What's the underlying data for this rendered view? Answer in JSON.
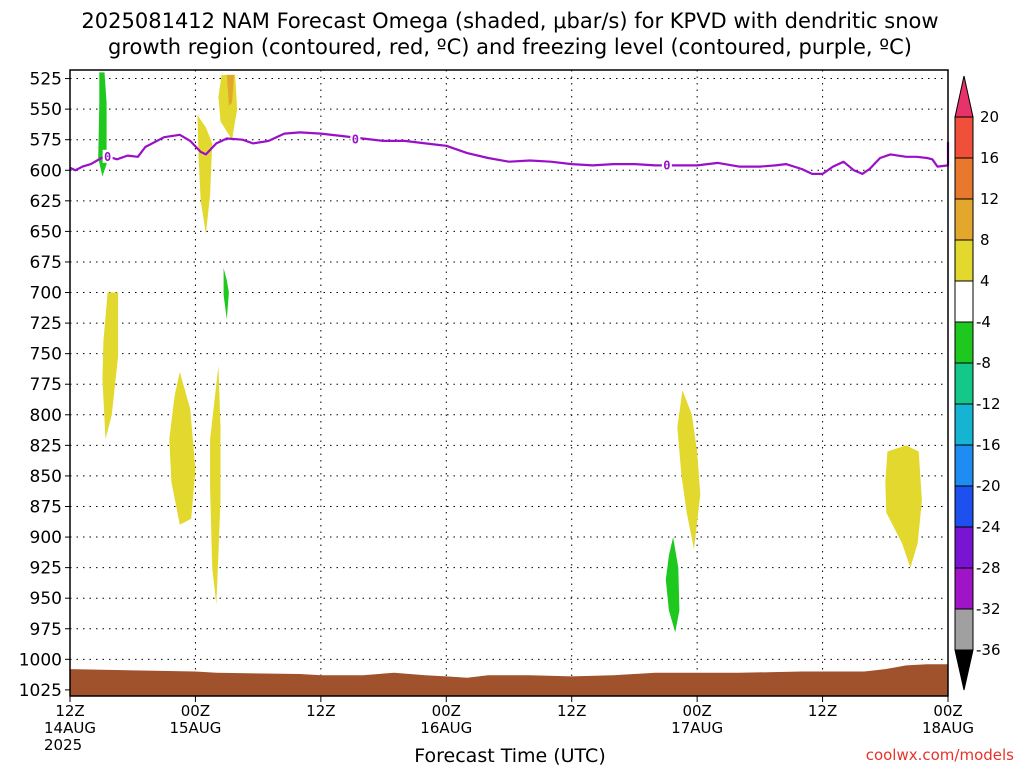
{
  "title_line1": "2025081412 NAM Forecast Omega (shaded, μbar/s) for KPVD with dendritic snow",
  "title_line2": "growth region (contoured, red, ºC) and freezing level (contoured, purple, ºC)",
  "credit": "coolwx.com/models",
  "colors": {
    "freezing_line": "#9a10c8",
    "ground": "#a0522d",
    "shade_pos_4_8": "#e3d82e",
    "shade_pos_8_12": "#e3a82b",
    "shade_neg_4_8": "#1ec81e"
  },
  "chart_data": {
    "type": "time-height",
    "title": "2025081412 NAM Forecast Omega (shaded, μbar/s) for KPVD with dendritic snow growth region (contoured, red, ºC) and freezing level (contoured, purple, ºC)",
    "xlabel": "Forecast Time (UTC)",
    "ylabel": "",
    "x_ticks": [
      {
        "t": 0,
        "label1": "12Z",
        "label2": "14AUG",
        "label3": "2025"
      },
      {
        "t": 12,
        "label1": "00Z",
        "label2": "15AUG",
        "label3": ""
      },
      {
        "t": 24,
        "label1": "12Z",
        "label2": "",
        "label3": ""
      },
      {
        "t": 36,
        "label1": "00Z",
        "label2": "16AUG",
        "label3": ""
      },
      {
        "t": 48,
        "label1": "12Z",
        "label2": "",
        "label3": ""
      },
      {
        "t": 60,
        "label1": "00Z",
        "label2": "17AUG",
        "label3": ""
      },
      {
        "t": 72,
        "label1": "12Z",
        "label2": "",
        "label3": ""
      },
      {
        "t": 84,
        "label1": "00Z",
        "label2": "18AUG",
        "label3": ""
      }
    ],
    "xlim_hours": [
      0,
      84
    ],
    "y_ticks": [
      525,
      550,
      575,
      600,
      625,
      650,
      675,
      700,
      725,
      750,
      775,
      800,
      825,
      850,
      875,
      900,
      925,
      950,
      975,
      1000,
      1025
    ],
    "ylim_hPa": [
      518,
      1030
    ],
    "grid": true,
    "colorbar": {
      "labels": [
        "20",
        "16",
        "12",
        "8",
        "4",
        "-4",
        "-8",
        "-12",
        "-16",
        "-20",
        "-24",
        "-28",
        "-32",
        "-36"
      ],
      "colors": [
        "#e8326a",
        "#f0503a",
        "#e8782d",
        "#e3a82b",
        "#e3d82e",
        "#ffffff",
        "#1ec81e",
        "#14c889",
        "#14b4d2",
        "#1e8cf0",
        "#1e50f0",
        "#7814d2",
        "#a014c8",
        "#a0a0a0",
        "#000000"
      ]
    },
    "freezing_level_label": "0",
    "freezing_level": [
      [
        0,
        598
      ],
      [
        0.5,
        600
      ],
      [
        1.2,
        597
      ],
      [
        2,
        595
      ],
      [
        3,
        590
      ],
      [
        3.7,
        589
      ],
      [
        4.5,
        591
      ],
      [
        5.5,
        588
      ],
      [
        6.5,
        589
      ],
      [
        7.2,
        581
      ],
      [
        9,
        573
      ],
      [
        10.5,
        571
      ],
      [
        11.5,
        576
      ],
      [
        12.5,
        585
      ],
      [
        13,
        587
      ],
      [
        14,
        578
      ],
      [
        15,
        574
      ],
      [
        16.5,
        575
      ],
      [
        17.5,
        578
      ],
      [
        19,
        576
      ],
      [
        20.5,
        570
      ],
      [
        22,
        569
      ],
      [
        24,
        570
      ],
      [
        26,
        572
      ],
      [
        28,
        574
      ],
      [
        30,
        576
      ],
      [
        32,
        576
      ],
      [
        34,
        578
      ],
      [
        35,
        579
      ],
      [
        36,
        580
      ],
      [
        38,
        586
      ],
      [
        40,
        590
      ],
      [
        42,
        593
      ],
      [
        44,
        592
      ],
      [
        46,
        593
      ],
      [
        48,
        595
      ],
      [
        50,
        596
      ],
      [
        52,
        595
      ],
      [
        54,
        595
      ],
      [
        56,
        596
      ],
      [
        58,
        596
      ],
      [
        60,
        596
      ],
      [
        62,
        594
      ],
      [
        64,
        597
      ],
      [
        66,
        597
      ],
      [
        67.5,
        596
      ],
      [
        68.5,
        595
      ],
      [
        70,
        599
      ],
      [
        71,
        603
      ],
      [
        72,
        603
      ],
      [
        73,
        597
      ],
      [
        74,
        593
      ],
      [
        75,
        600
      ],
      [
        75.8,
        603
      ],
      [
        76.5,
        599
      ],
      [
        77.5,
        590
      ],
      [
        78.5,
        587
      ],
      [
        80,
        589
      ],
      [
        81,
        589
      ],
      [
        82,
        590
      ],
      [
        82.5,
        591
      ],
      [
        83,
        597
      ],
      [
        84,
        596
      ],
      [
        84.5,
        592
      ],
      [
        85,
        577
      ]
    ],
    "omega_regions": [
      {
        "value_range": "-4 to -8",
        "color": "#1ec81e",
        "points": [
          [
            2.8,
            520
          ],
          [
            3.3,
            520
          ],
          [
            3.5,
            545
          ],
          [
            3.5,
            595
          ],
          [
            3.1,
            605
          ],
          [
            2.7,
            590
          ],
          [
            2.8,
            545
          ]
        ]
      },
      {
        "value_range": "4 to 8",
        "color": "#e3d82e",
        "points": [
          [
            14.5,
            522
          ],
          [
            15.8,
            522
          ],
          [
            16,
            550
          ],
          [
            15.5,
            575
          ],
          [
            14.4,
            560
          ],
          [
            14.2,
            540
          ]
        ]
      },
      {
        "value_range": "8 to 12",
        "color": "#e3a82b",
        "points": [
          [
            15,
            522
          ],
          [
            15.7,
            522
          ],
          [
            15.5,
            545
          ],
          [
            15.2,
            547
          ]
        ]
      },
      {
        "value_range": "4 to 8",
        "color": "#e3d82e",
        "points": [
          [
            12.2,
            555
          ],
          [
            13,
            565
          ],
          [
            13.6,
            578
          ],
          [
            13.4,
            620
          ],
          [
            13,
            652
          ],
          [
            12.5,
            625
          ],
          [
            12.3,
            590
          ]
        ]
      },
      {
        "value_range": "-4 to -8",
        "color": "#1ec81e",
        "points": [
          [
            14.7,
            680
          ],
          [
            15,
            690
          ],
          [
            15.2,
            700
          ],
          [
            15,
            722
          ],
          [
            14.7,
            702
          ]
        ]
      },
      {
        "value_range": "4 to 8",
        "color": "#e3d82e",
        "points": [
          [
            3.6,
            700
          ],
          [
            4.6,
            700
          ],
          [
            4.6,
            752
          ],
          [
            4,
            800
          ],
          [
            3.4,
            820
          ],
          [
            3.1,
            770
          ],
          [
            3.2,
            740
          ]
        ]
      },
      {
        "value_range": "4 to 8",
        "color": "#e3d82e",
        "points": [
          [
            10.5,
            765
          ],
          [
            11.5,
            795
          ],
          [
            12,
            845
          ],
          [
            11.6,
            885
          ],
          [
            10.5,
            890
          ],
          [
            9.7,
            855
          ],
          [
            9.5,
            820
          ],
          [
            10,
            785
          ]
        ]
      },
      {
        "value_range": "4 to 8",
        "color": "#e3d82e",
        "points": [
          [
            14.2,
            760
          ],
          [
            14.4,
            810
          ],
          [
            14.4,
            870
          ],
          [
            14.1,
            935
          ],
          [
            14,
            955
          ],
          [
            13.6,
            925
          ],
          [
            13.4,
            860
          ],
          [
            13.4,
            820
          ]
        ]
      },
      {
        "value_range": "4 to 8",
        "color": "#e3d82e",
        "points": [
          [
            58.6,
            780
          ],
          [
            59.5,
            800
          ],
          [
            60,
            830
          ],
          [
            60.3,
            865
          ],
          [
            59.7,
            910
          ],
          [
            59,
            880
          ],
          [
            58.5,
            850
          ],
          [
            58.1,
            810
          ]
        ]
      },
      {
        "value_range": "-4 to -8",
        "color": "#1ec81e",
        "points": [
          [
            57.7,
            900
          ],
          [
            58.2,
            925
          ],
          [
            58.3,
            960
          ],
          [
            57.9,
            978
          ],
          [
            57.3,
            960
          ],
          [
            57,
            935
          ],
          [
            57.3,
            915
          ]
        ]
      },
      {
        "value_range": "4 to 8",
        "color": "#e3d82e",
        "points": [
          [
            78.2,
            830
          ],
          [
            80,
            825
          ],
          [
            81.2,
            830
          ],
          [
            81.5,
            870
          ],
          [
            81.1,
            905
          ],
          [
            80.4,
            925
          ],
          [
            79.6,
            905
          ],
          [
            78.1,
            880
          ],
          [
            78,
            855
          ]
        ]
      }
    ],
    "ground_top_hPa": [
      [
        0,
        1008
      ],
      [
        12,
        1010
      ],
      [
        14,
        1011
      ],
      [
        22,
        1012
      ],
      [
        24,
        1013
      ],
      [
        28,
        1013
      ],
      [
        31,
        1011
      ],
      [
        34,
        1013
      ],
      [
        36,
        1014
      ],
      [
        38,
        1015
      ],
      [
        40,
        1013
      ],
      [
        44,
        1013
      ],
      [
        48,
        1014
      ],
      [
        52,
        1013
      ],
      [
        56,
        1011
      ],
      [
        60,
        1011
      ],
      [
        64,
        1011
      ],
      [
        70,
        1010
      ],
      [
        76,
        1010
      ],
      [
        78,
        1008
      ],
      [
        80,
        1005
      ],
      [
        82,
        1004
      ],
      [
        84,
        1004
      ]
    ]
  }
}
